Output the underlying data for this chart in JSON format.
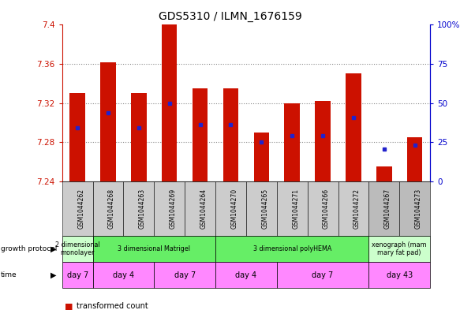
{
  "title": "GDS5310 / ILMN_1676159",
  "samples": [
    "GSM1044262",
    "GSM1044268",
    "GSM1044263",
    "GSM1044269",
    "GSM1044264",
    "GSM1044270",
    "GSM1044265",
    "GSM1044271",
    "GSM1044266",
    "GSM1044272",
    "GSM1044267",
    "GSM1044273"
  ],
  "bar_values": [
    7.33,
    7.362,
    7.33,
    7.4,
    7.335,
    7.335,
    7.29,
    7.32,
    7.322,
    7.35,
    7.255,
    7.285
  ],
  "blue_values": [
    7.295,
    7.31,
    7.295,
    7.32,
    7.298,
    7.298,
    7.28,
    7.287,
    7.287,
    7.305,
    7.273,
    7.277
  ],
  "y_min": 7.24,
  "y_max": 7.4,
  "y_ticks": [
    7.24,
    7.28,
    7.32,
    7.36,
    7.4
  ],
  "y_ticks_labels": [
    "7.24",
    "7.28",
    "7.32",
    "7.36",
    "7.4"
  ],
  "right_y_ticks": [
    0,
    25,
    50,
    75,
    100
  ],
  "right_y_labels": [
    "0",
    "25",
    "50",
    "75",
    "100%"
  ],
  "bar_color": "#cc1100",
  "blue_color": "#2222cc",
  "dotted_line_color": "#888888",
  "left_axis_color": "#cc1100",
  "right_axis_color": "#0000cc",
  "growth_protocol_groups": [
    {
      "label": "2 dimensional\nmonolayer",
      "start": 0,
      "end": 1,
      "color": "#ccffcc"
    },
    {
      "label": "3 dimensional Matrigel",
      "start": 1,
      "end": 5,
      "color": "#66ee66"
    },
    {
      "label": "3 dimensional polyHEMA",
      "start": 5,
      "end": 10,
      "color": "#66ee66"
    },
    {
      "label": "xenograph (mam\nmary fat pad)",
      "start": 10,
      "end": 12,
      "color": "#ccffcc"
    }
  ],
  "time_groups": [
    {
      "label": "day 7",
      "start": 0,
      "end": 1
    },
    {
      "label": "day 4",
      "start": 1,
      "end": 3
    },
    {
      "label": "day 7",
      "start": 3,
      "end": 5
    },
    {
      "label": "day 4",
      "start": 5,
      "end": 7
    },
    {
      "label": "day 7",
      "start": 7,
      "end": 10
    },
    {
      "label": "day 43",
      "start": 10,
      "end": 12
    }
  ],
  "time_color": "#ff88ff",
  "sample_bg_color_main": "#cccccc",
  "sample_bg_color_last2": "#bbbbbb"
}
